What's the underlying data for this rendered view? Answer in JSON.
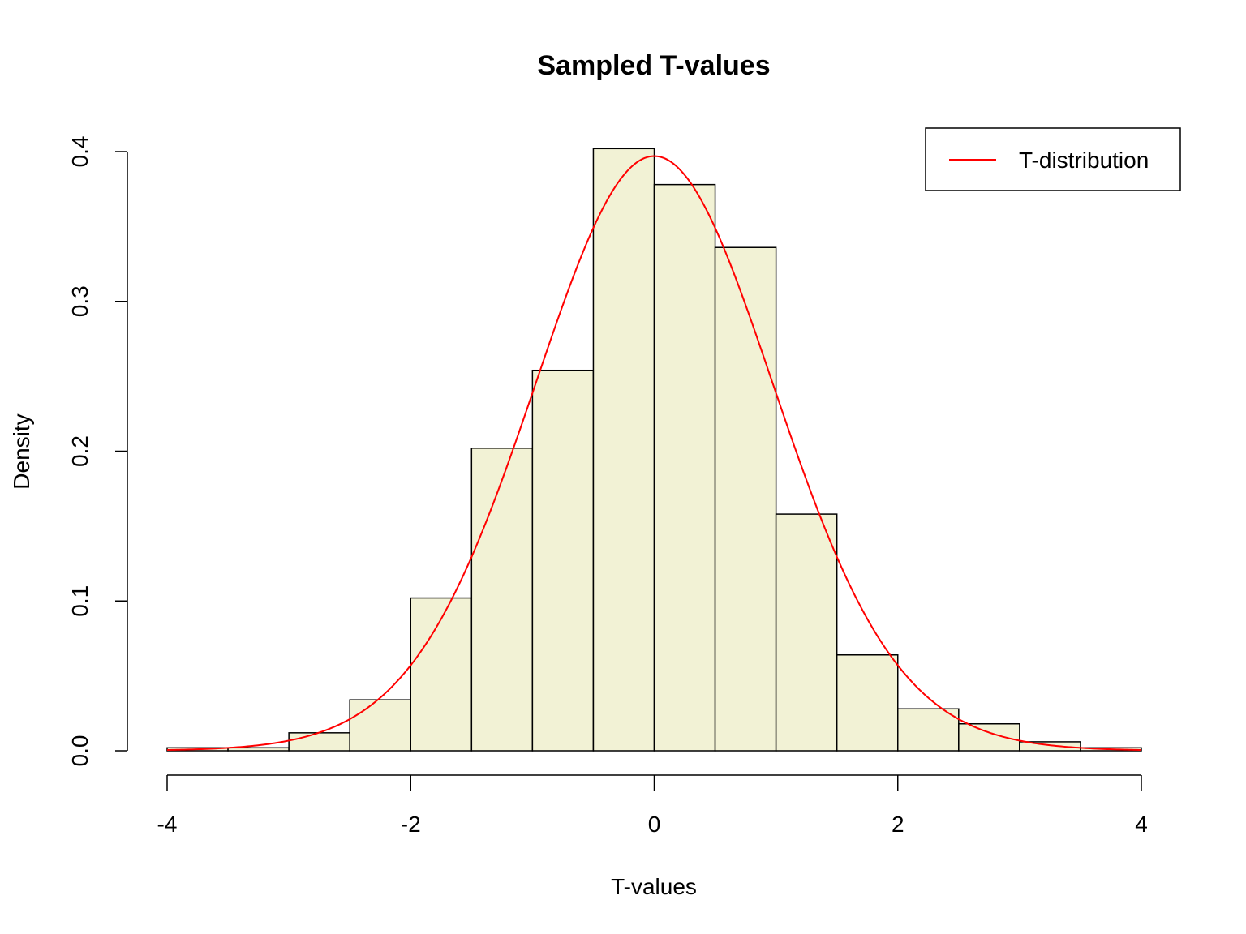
{
  "chart_data": {
    "type": "histogram",
    "title": "Sampled T-values",
    "xlabel": "T-values",
    "ylabel": "Density",
    "xlim": [
      -4,
      4
    ],
    "ylim": [
      0,
      0.4
    ],
    "x_ticks": [
      -4,
      -2,
      0,
      2,
      4
    ],
    "x_tick_labels": [
      "-4",
      "-2",
      "0",
      "2",
      "4"
    ],
    "y_ticks": [
      0,
      0.1,
      0.2,
      0.3,
      0.4
    ],
    "y_tick_labels": [
      "0.0",
      "0.1",
      "0.2",
      "0.3",
      "0.4"
    ],
    "bin_edges": [
      -4,
      -3.5,
      -3,
      -2.5,
      -2,
      -1.5,
      -1,
      -0.5,
      0,
      0.5,
      1,
      1.5,
      2,
      2.5,
      3,
      3.5,
      4
    ],
    "densities": [
      0.002,
      0.002,
      0.012,
      0.034,
      0.102,
      0.202,
      0.254,
      0.402,
      0.378,
      0.336,
      0.158,
      0.064,
      0.028,
      0.018,
      0.006,
      0.002
    ],
    "bar_fill": "#f2f2d5",
    "bar_stroke": "#000000",
    "curve": {
      "name": "T-distribution",
      "color": "#ff0000",
      "x_range": [
        -4,
        4
      ],
      "peak_density": 0.397
    },
    "legend": {
      "placement": "top-right",
      "entries": [
        "T-distribution"
      ]
    },
    "grid": false
  }
}
